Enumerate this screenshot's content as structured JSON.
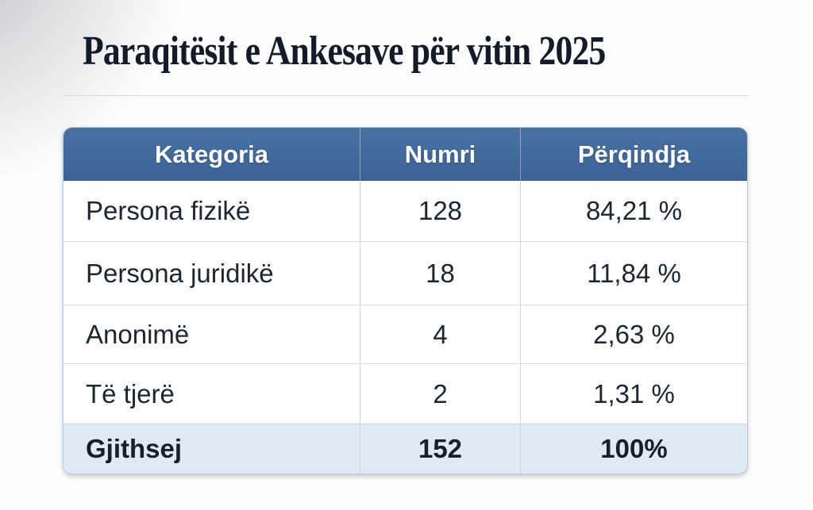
{
  "page": {
    "title": "Paraqitësit e Ankesave për vitin 2025"
  },
  "table": {
    "columns": [
      "Kategoria",
      "Numri",
      "Përqindja"
    ],
    "rows": [
      {
        "kategoria": "Persona fizikë",
        "numri": "128",
        "perqindja": "84,21 %"
      },
      {
        "kategoria": "Persona juridikë",
        "numri": "18",
        "perqindja": "11,84 %"
      },
      {
        "kategoria": "Anonimë",
        "numri": "4",
        "perqindja": "2,63 %"
      },
      {
        "kategoria": "Të tjerë",
        "numri": "2",
        "perqindja": "1,31 %"
      }
    ],
    "total_row": {
      "kategoria": "Gjithsej",
      "numri": "152",
      "perqindja": "100%"
    }
  },
  "colors": {
    "header_bg_top": "#4871a2",
    "header_bg_bottom": "#3d6395",
    "header_text": "#ffffff",
    "total_row_bg": "#dfeaf4",
    "body_text": "#1d2530",
    "title_text": "#131b29",
    "row_border": "#dadfe4",
    "column_border": "#ccd4dc",
    "outer_border": "#bec9d3"
  },
  "chart_data": {
    "type": "table",
    "title": "Paraqitësit e Ankesave për vitin 2025",
    "columns": [
      "Kategoria",
      "Numri",
      "Përqindja"
    ],
    "categories": [
      "Persona fizikë",
      "Persona juridikë",
      "Anonimë",
      "Të tjerë"
    ],
    "counts": [
      128,
      18,
      4,
      2
    ],
    "percentages": [
      84.21,
      11.84,
      2.63,
      1.31
    ],
    "total": {
      "label": "Gjithsej",
      "count": 152,
      "percentage": 100
    }
  }
}
